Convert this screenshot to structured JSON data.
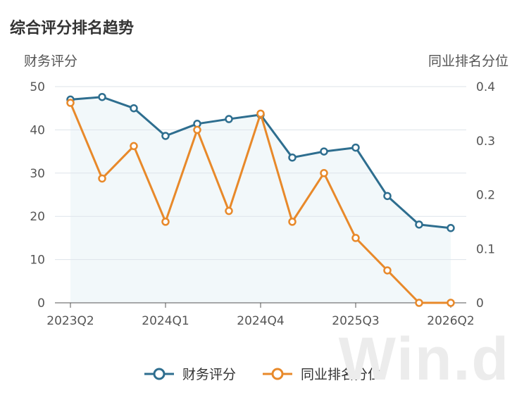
{
  "chart_data": {
    "type": "line",
    "title": "综合评分排名趋势",
    "left_axis_label": "财务评分",
    "right_axis_label": "同业排名分位",
    "categories": [
      "2023Q2",
      "2023Q3",
      "2023Q4",
      "2024Q1",
      "2024Q2",
      "2024Q3",
      "2024Q4",
      "2025Q1",
      "2025Q2",
      "2025Q3",
      "2025Q4",
      "2026Q1",
      "2026Q2"
    ],
    "x_tick_labels": [
      "2023Q2",
      "2024Q1",
      "2024Q4",
      "2025Q3",
      "2026Q2"
    ],
    "left_ylim": [
      0,
      50
    ],
    "left_yticks": [
      "0",
      "10",
      "20",
      "30",
      "40",
      "50"
    ],
    "right_ylim": [
      0,
      0.4
    ],
    "right_yticks": [
      "0",
      "0.1",
      "0.2",
      "0.3",
      "0.4"
    ],
    "series": [
      {
        "name": "财务评分",
        "axis": "left",
        "color": "#2e6e8f",
        "values": [
          47,
          47.6,
          45,
          38.6,
          41.4,
          42.5,
          43.5,
          33.6,
          35,
          35.9,
          24.7,
          18.1,
          17.3
        ]
      },
      {
        "name": "同业排名分位",
        "axis": "right",
        "color": "#e8892a",
        "values": [
          0.37,
          0.23,
          0.29,
          0.15,
          0.32,
          0.17,
          0.35,
          0.15,
          0.24,
          0.12,
          0.06,
          0.0,
          0.0
        ]
      }
    ],
    "grid": true,
    "legend_position": "bottom-center"
  },
  "watermark": "Win.d"
}
